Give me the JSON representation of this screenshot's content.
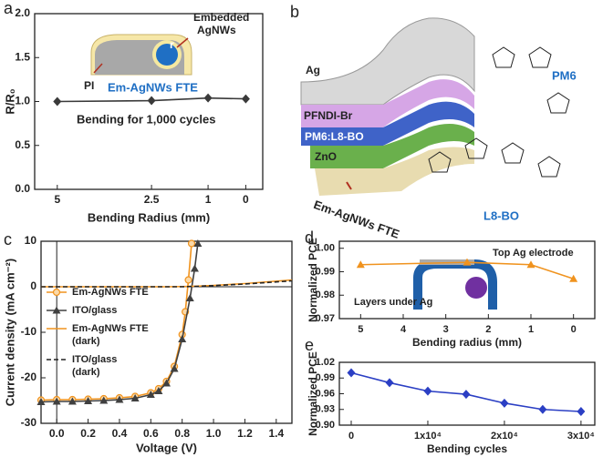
{
  "chart_data": [
    {
      "type": "line",
      "panel": "a",
      "xlabel": "Bending Radius (mm)",
      "ylabel": "R/R₀",
      "xlim": [
        5.6,
        -0.45
      ],
      "xticks": [
        5,
        2.5,
        1,
        0
      ],
      "ylim": [
        0,
        2
      ],
      "yticks": [
        {
          "value": 0,
          "label": "0.0"
        },
        0.5,
        {
          "value": 1,
          "label": "1.0"
        },
        1.5,
        {
          "value": 2,
          "label": "2.0"
        }
      ],
      "series": [
        {
          "color": "#3a3a3a",
          "marker": "diamond",
          "dash": false,
          "x": [
            5,
            2.5,
            1,
            0
          ],
          "values": [
            1.0,
            1.01,
            1.04,
            1.03
          ]
        }
      ],
      "annotations": [
        "Embedded",
        "AgNWs",
        "r",
        "PI",
        "Em-AgNWs FTE",
        "Bending for 1,000 cycles"
      ]
    },
    {
      "type": "line",
      "panel": "c",
      "xlabel": "Voltage (V)",
      "ylabel": "Current density (mA cm⁻²)",
      "xlim": [
        -0.1,
        1.5
      ],
      "xticks": [
        {
          "value": 0,
          "label": "0.0"
        },
        0.2,
        0.4,
        0.6,
        0.8,
        {
          "value": 1,
          "label": "1.0"
        },
        1.2,
        1.4
      ],
      "ylim": [
        -30,
        10
      ],
      "yticks": [
        10,
        0,
        -10,
        -20,
        -30
      ],
      "zero_lines": true,
      "legend": "center left",
      "series": [
        {
          "name": "Em-AgNWs FTE",
          "color": "#f0931e",
          "marker": "circle",
          "dash": false,
          "x": [
            -0.1,
            0,
            0.1,
            0.2,
            0.3,
            0.4,
            0.5,
            0.6,
            0.65,
            0.7,
            0.75,
            0.8,
            0.82,
            0.84,
            0.86
          ],
          "values": [
            -24.9,
            -24.8,
            -24.8,
            -24.7,
            -24.6,
            -24.4,
            -24.1,
            -23.3,
            -22.4,
            -20.8,
            -17.5,
            -10.5,
            -5.5,
            1.5,
            9.5
          ]
        },
        {
          "name": "ITO/glass",
          "color": "#404040",
          "marker": "triangle",
          "dash": false,
          "x": [
            -0.1,
            0,
            0.1,
            0.2,
            0.3,
            0.4,
            0.5,
            0.6,
            0.65,
            0.7,
            0.75,
            0.8,
            0.85,
            0.88,
            0.9
          ],
          "values": [
            -25.3,
            -25.2,
            -25.2,
            -25.1,
            -25.0,
            -24.8,
            -24.5,
            -23.7,
            -22.9,
            -21.2,
            -18.0,
            -11.5,
            -2.5,
            4,
            9.5
          ]
        },
        {
          "name": "Em-AgNWs FTE (dark)",
          "color": "#f0931e",
          "marker": "none",
          "dash": false,
          "x": [
            -0.1,
            0,
            0.5,
            0.7,
            0.8,
            0.9,
            1.0,
            1.2,
            1.5
          ],
          "values": [
            0,
            0,
            0,
            0,
            0.05,
            0.15,
            0.3,
            0.7,
            1.5
          ]
        },
        {
          "name": "ITO/glass (dark)",
          "color": "#222222",
          "marker": "none",
          "dash": true,
          "x": [
            -0.1,
            0,
            0.5,
            0.7,
            0.8,
            0.9,
            1.0,
            1.2,
            1.5
          ],
          "values": [
            0,
            0,
            0,
            0,
            0,
            0.1,
            0.25,
            0.6,
            1.3
          ]
        }
      ]
    },
    {
      "type": "line",
      "panel": "d",
      "xlabel": "Bending radius (mm)",
      "ylabel": "Normalized PCE",
      "xlim": [
        5.5,
        -0.5
      ],
      "xticks": [
        5,
        4,
        3,
        2,
        1,
        0
      ],
      "ylim": [
        0.97,
        1.003
      ],
      "yticks": [
        0.97,
        0.98,
        0.99,
        {
          "value": 1,
          "label": "1.00"
        }
      ],
      "series": [
        {
          "color": "#f0931e",
          "marker": "triangle",
          "dash": false,
          "x": [
            5,
            2.5,
            1,
            0
          ],
          "values": [
            0.993,
            0.994,
            0.993,
            0.987
          ]
        }
      ],
      "annotations": [
        "Top Ag electrode",
        "Layers under Ag"
      ]
    },
    {
      "type": "line",
      "panel": "e",
      "xlabel": "Bending cycles",
      "ylabel": "Normalized PCE",
      "xlim": [
        -1550,
        31800
      ],
      "xticks": [
        0,
        {
          "value": 10000,
          "label": "1x10⁴"
        },
        {
          "value": 20000,
          "label": "2x10⁴"
        },
        {
          "value": 30000,
          "label": "3x10⁴"
        }
      ],
      "ylim": [
        0.9,
        1.02
      ],
      "yticks": [
        {
          "value": 0.9,
          "label": "0.90"
        },
        0.93,
        0.96,
        0.99,
        1.02
      ],
      "series": [
        {
          "color": "#2b3fc4",
          "marker": "diamond",
          "dash": false,
          "x": [
            0,
            5000,
            10000,
            15000,
            20000,
            25000,
            30000
          ],
          "values": [
            1.0,
            0.981,
            0.965,
            0.959,
            0.942,
            0.93,
            0.926
          ]
        }
      ]
    }
  ],
  "diagram": {
    "panel": "b",
    "layers": [
      "Ag",
      "PFNDI-Br",
      "PM6:L8-BO",
      "ZnO",
      "Em-AgNWs FTE"
    ],
    "molecules": [
      "PM6",
      "L8-BO"
    ]
  }
}
